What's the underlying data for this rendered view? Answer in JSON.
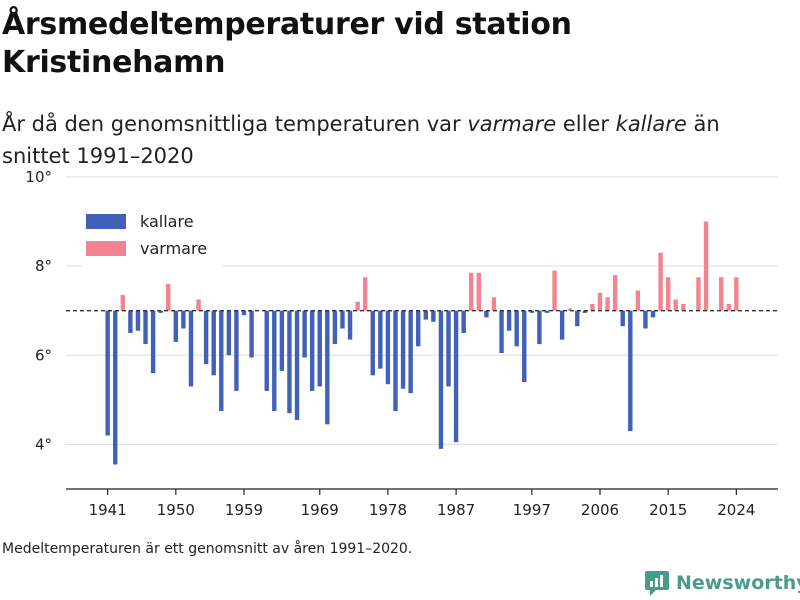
{
  "title": "Årsmedeltemperaturer vid station Kristinehamn",
  "subtitle": {
    "part1": "År då den genomsnittliga temperaturen var ",
    "warm_word": "varmare",
    "part2": " eller ",
    "cold_word": "kallare",
    "part3": " än snittet 1991–2020"
  },
  "footnote": "Medeltemperaturen är ett genomsnitt av åren 1991–2020.",
  "brand": {
    "name": "Newsworthy",
    "icon": "newsworthy-logo-icon",
    "color": "#4a9a8e"
  },
  "colors": {
    "kallare": "#4161b8",
    "varmare": "#f38390",
    "reference_line": "#333333",
    "grid": "#dddddd"
  },
  "chart_data": {
    "type": "bar",
    "reference_value": 7.0,
    "ylim": [
      3.0,
      10.2
    ],
    "yticks": [
      4,
      6,
      8,
      10
    ],
    "ytick_labels": [
      "4°",
      "6°",
      "8°",
      "10°"
    ],
    "xlim": [
      1935.5,
      2029.5
    ],
    "xticks": [
      1941,
      1950,
      1959,
      1969,
      1978,
      1987,
      1997,
      2006,
      2015,
      2024
    ],
    "xtick_labels": [
      "1941",
      "1950",
      "1959",
      "1969",
      "1978",
      "1987",
      "1997",
      "2006",
      "2015",
      "2024"
    ],
    "legend": [
      {
        "key": "kallare",
        "label": "kallare",
        "color": "#4161b8"
      },
      {
        "key": "varmare",
        "label": "varmare",
        "color": "#f38390"
      }
    ],
    "legend_position": "top-left",
    "grid": "horizontal",
    "x": [
      1941,
      1942,
      1943,
      1944,
      1945,
      1946,
      1947,
      1948,
      1949,
      1950,
      1951,
      1952,
      1953,
      1954,
      1955,
      1956,
      1957,
      1958,
      1959,
      1960,
      1962,
      1963,
      1964,
      1965,
      1966,
      1967,
      1968,
      1969,
      1970,
      1971,
      1972,
      1973,
      1974,
      1975,
      1976,
      1977,
      1978,
      1979,
      1980,
      1981,
      1982,
      1983,
      1984,
      1985,
      1986,
      1987,
      1988,
      1989,
      1990,
      1991,
      1992,
      1993,
      1994,
      1995,
      1996,
      1997,
      1998,
      1999,
      2000,
      2001,
      2002,
      2003,
      2004,
      2005,
      2006,
      2007,
      2008,
      2009,
      2010,
      2011,
      2012,
      2013,
      2014,
      2015,
      2016,
      2017,
      2019,
      2020,
      2022,
      2023,
      2024
    ],
    "values": [
      4.2,
      3.55,
      7.35,
      6.5,
      6.55,
      6.25,
      5.6,
      6.95,
      7.6,
      6.3,
      6.6,
      5.3,
      7.25,
      5.8,
      5.55,
      4.75,
      6.0,
      5.2,
      6.9,
      5.95,
      5.2,
      4.75,
      5.65,
      4.7,
      4.55,
      5.95,
      5.2,
      5.3,
      4.45,
      6.25,
      6.6,
      6.35,
      7.2,
      7.75,
      5.55,
      5.7,
      5.35,
      4.75,
      5.25,
      5.15,
      6.2,
      6.8,
      6.75,
      3.9,
      5.3,
      4.05,
      6.5,
      7.85,
      7.85,
      6.85,
      7.3,
      6.05,
      6.55,
      6.2,
      5.4,
      6.95,
      6.25,
      6.95,
      7.9,
      6.35,
      7.05,
      6.65,
      6.95,
      7.15,
      7.4,
      7.3,
      7.8,
      6.65,
      4.3,
      7.45,
      6.6,
      6.85,
      8.3,
      7.75,
      7.25,
      7.15,
      7.75,
      9.0,
      7.75,
      7.15,
      7.75
    ]
  }
}
